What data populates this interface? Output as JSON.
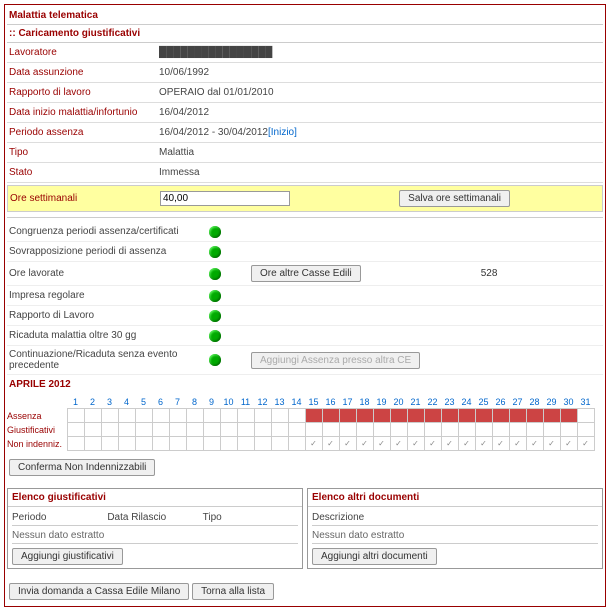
{
  "header": {
    "title": "Malattia telematica",
    "subtitle": ":: Caricamento giustificativi"
  },
  "info": {
    "lavoratore_lbl": "Lavoratore",
    "lavoratore_val": "████████████████",
    "assunzione_lbl": "Data assunzione",
    "assunzione_val": "10/06/1992",
    "rapporto_lbl": "Rapporto di lavoro",
    "rapporto_val": "OPERAIO dal 01/01/2010",
    "inizio_lbl": "Data inizio malattia/infortunio",
    "inizio_val": "16/04/2012",
    "periodo_lbl": "Periodo assenza",
    "periodo_val": "16/04/2012 - 30/04/2012 ",
    "periodo_link": "[Inizio]",
    "tipo_lbl": "Tipo",
    "tipo_val": "Malattia",
    "stato_lbl": "Stato",
    "stato_val": "Immessa"
  },
  "ore": {
    "lbl": "Ore settimanali",
    "val": "40,00",
    "btn": "Salva ore settimanali"
  },
  "checks": {
    "c1": "Congruenza periodi assenza/certificati",
    "c2": "Sovrapposizione periodi di assenza",
    "c3": "Ore lavorate",
    "c3_btn": "Ore altre Casse Edili",
    "c3_val": "528",
    "c4": "Impresa regolare",
    "c5": "Rapporto di Lavoro",
    "c6": "Ricaduta malattia oltre 30 gg",
    "c7": "Continuazione/Ricaduta senza evento precedente",
    "c7_btn": "Aggiungi Assenza presso altra CE"
  },
  "calendar": {
    "month": "APRILE 2012",
    "rows": {
      "r1": "Assenza",
      "r2": "Giustificativi",
      "r3": "Non indenniz."
    },
    "red_days": [
      15,
      16,
      17,
      18,
      19,
      20,
      21,
      22,
      23,
      24,
      25,
      26,
      27,
      28,
      29,
      30
    ],
    "chk_days": [
      15,
      16,
      17,
      18,
      19,
      20,
      21,
      22,
      23,
      24,
      25,
      26,
      27,
      28,
      29,
      30,
      31
    ],
    "btn": "Conferma Non Indennizzabili"
  },
  "panels": {
    "p1_title": "Elenco giustificativi",
    "p1_c1": "Periodo",
    "p1_c2": "Data Rilascio",
    "p1_c3": "Tipo",
    "p1_nodata": "Nessun dato estratto",
    "p1_btn": "Aggiungi giustificativi",
    "p2_title": "Elenco altri documenti",
    "p2_c1": "Descrizione",
    "p2_nodata": "Nessun dato estratto",
    "p2_btn": "Aggiungi altri documenti"
  },
  "footer": {
    "b1": "Invia domanda a Cassa Edile Milano",
    "b2": "Torna alla lista"
  }
}
